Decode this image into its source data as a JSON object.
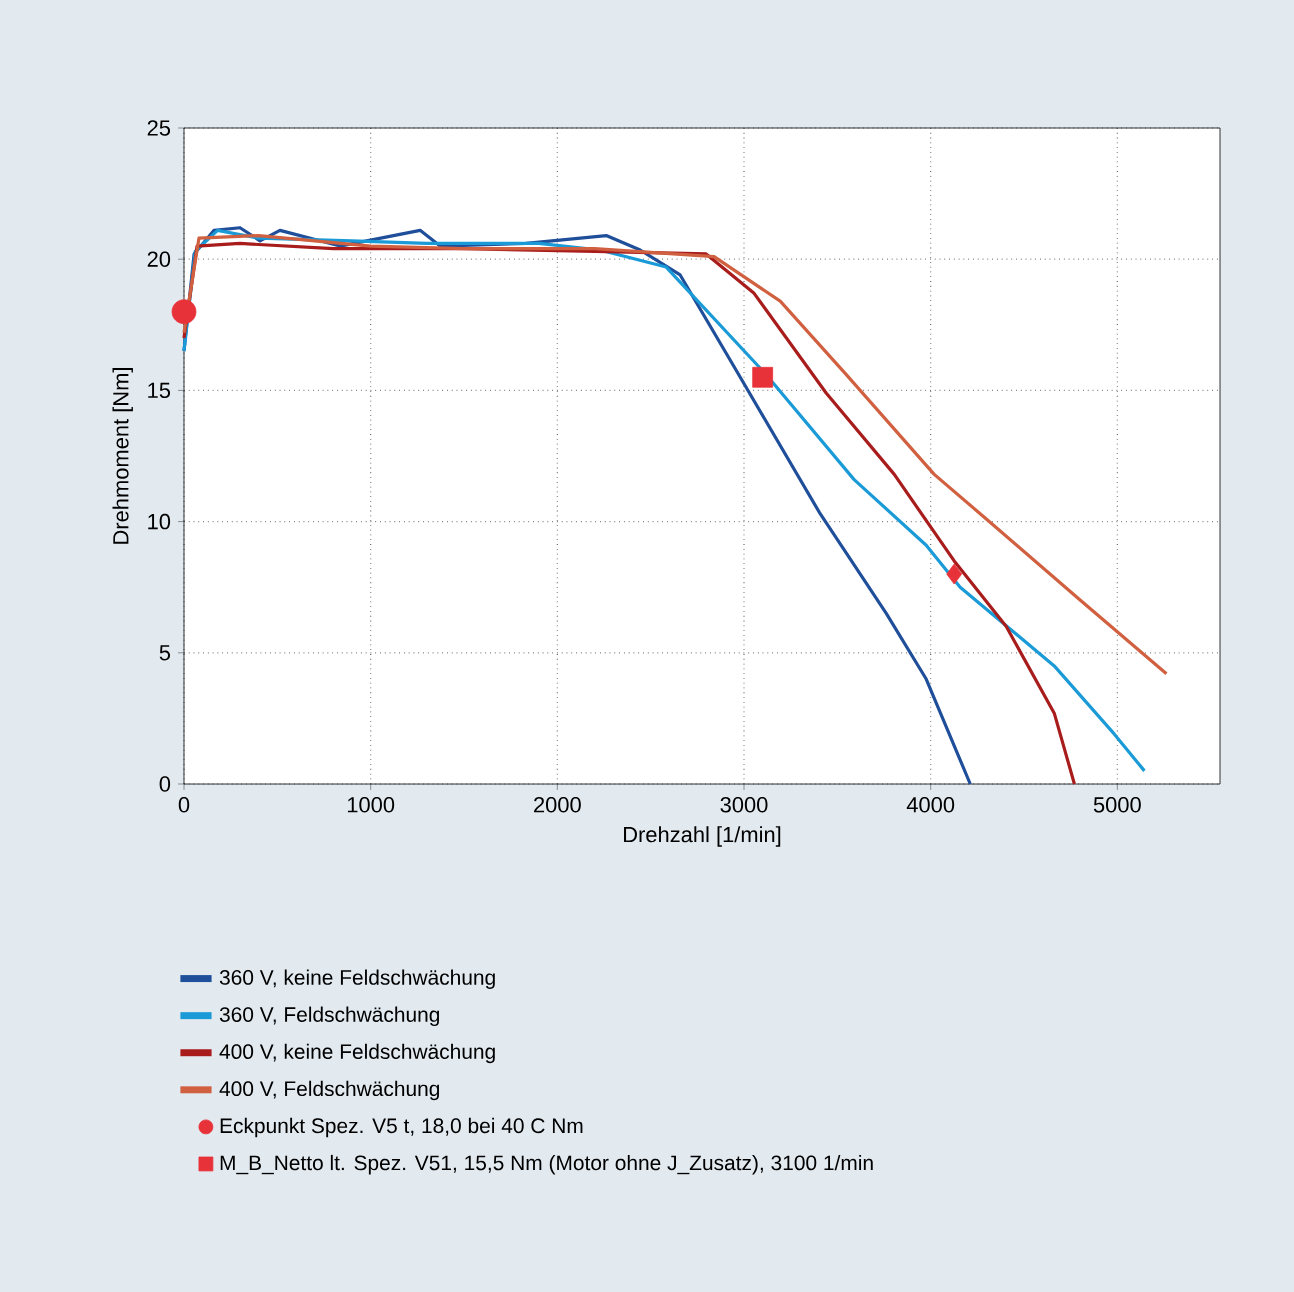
{
  "chart_data": {
    "type": "line",
    "xlabel": "Drehzahl [1/min]",
    "ylabel": "Drehmoment [Nm]",
    "xlim": [
      0,
      5550
    ],
    "ylim": [
      0,
      25
    ],
    "xticks": [
      0,
      1000,
      2000,
      3000,
      4000,
      5000
    ],
    "yticks": [
      0,
      5,
      10,
      15,
      20,
      25
    ],
    "grid": true,
    "legend": "bottom",
    "marker": "none",
    "line_style": "solid",
    "series": [
      {
        "name": "360 V, keine Feldschwächung",
        "color": "#1f4e9a",
        "x": [
          0,
          54,
          161,
          300,
          407,
          514,
          836,
          1265,
          1372,
          1833,
          2262,
          2444,
          2658,
          2947,
          3408,
          3762,
          3976,
          4212
        ],
        "values": [
          16.5,
          20.2,
          21.1,
          21.2,
          20.7,
          21.1,
          20.5,
          21.1,
          20.5,
          20.6,
          20.9,
          20.35,
          19.4,
          15.9,
          10.3,
          6.5,
          4.0,
          0
        ]
      },
      {
        "name": "360 V,  Feldschwächung",
        "color": "#1a9ad6",
        "x": [
          0,
          60,
          180,
          400,
          900,
          1300,
          1900,
          2229,
          2583,
          3119,
          3590,
          3976,
          4158,
          4662,
          4984,
          5145
        ],
        "values": [
          16.5,
          20.3,
          21.1,
          20.8,
          20.7,
          20.6,
          20.6,
          20.35,
          19.7,
          15.6,
          11.6,
          9.1,
          7.5,
          4.5,
          1.9,
          0.5
        ]
      },
      {
        "name": "400 V, keine Feldschwächung",
        "color": "#a81c1c",
        "x": [
          0,
          70,
          300,
          800,
          1500,
          2200,
          2797,
          3054,
          3440,
          3805,
          4126,
          4405,
          4662,
          4770
        ],
        "values": [
          17.0,
          20.5,
          20.6,
          20.4,
          20.4,
          20.3,
          20.2,
          18.7,
          14.9,
          11.8,
          8.5,
          6.0,
          2.7,
          0
        ]
      },
      {
        "name": "400 V,  Feldschwächung",
        "color": "#d0603f",
        "x": [
          0,
          80,
          400,
          1000,
          1500,
          2200,
          2840,
          3194,
          3548,
          4019,
          4298,
          4802,
          5263
        ],
        "values": [
          17.2,
          20.8,
          20.9,
          20.5,
          20.4,
          20.4,
          20.1,
          18.4,
          15.6,
          11.8,
          10.1,
          7.0,
          4.2
        ]
      },
      {
        "name": "Eckpunkt Spez. V5 t, 18,0 bei 40 C Nm",
        "type": "scatter",
        "marker": "circle",
        "color": "#e8323a",
        "x": [
          0
        ],
        "values": [
          18.0
        ]
      },
      {
        "name": "M_B_Netto lt. Spez. V51, 15,5 Nm (Motor ohne J_Zusatz), 3100 1/min",
        "type": "scatter",
        "marker": "square",
        "color": "#e8323a",
        "x": [
          3100
        ],
        "values": [
          15.5
        ]
      },
      {
        "type": "scatter",
        "marker": "diamond",
        "color": "#e8323a",
        "x": [
          4126
        ],
        "values": [
          8.0
        ]
      }
    ]
  }
}
